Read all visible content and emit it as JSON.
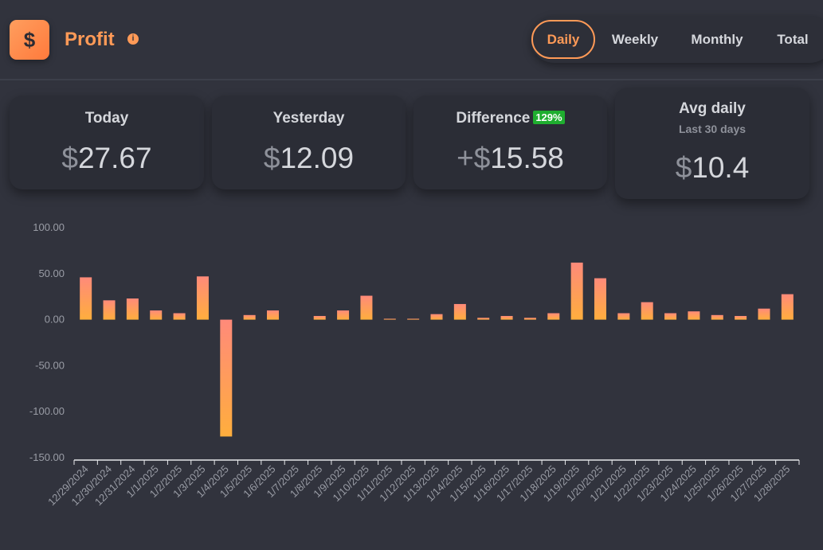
{
  "header": {
    "logo_symbol": "$",
    "title": "Profit",
    "info_icon": "info-icon",
    "accent_color": "#ff9a57"
  },
  "tabs": [
    {
      "label": "Daily",
      "active": true
    },
    {
      "label": "Weekly",
      "active": false
    },
    {
      "label": "Monthly",
      "active": false
    },
    {
      "label": "Total",
      "active": false
    }
  ],
  "cards": {
    "today": {
      "label": "Today",
      "currency": "$",
      "value": "27.67"
    },
    "yesterday": {
      "label": "Yesterday",
      "currency": "$",
      "value": "12.09"
    },
    "difference": {
      "label": "Difference",
      "badge": "129%",
      "sign": "+",
      "currency": "$",
      "value": "15.58"
    },
    "avg": {
      "label": "Avg daily",
      "sub": "Last 30 days",
      "currency": "$",
      "value": "10.4"
    }
  },
  "chart_data": {
    "type": "bar",
    "categories": [
      "12/29/2024",
      "12/30/2024",
      "12/31/2024",
      "1/1/2025",
      "1/2/2025",
      "1/3/2025",
      "1/4/2025",
      "1/5/2025",
      "1/6/2025",
      "1/7/2025",
      "1/8/2025",
      "1/9/2025",
      "1/10/2025",
      "1/11/2025",
      "1/12/2025",
      "1/13/2025",
      "1/14/2025",
      "1/15/2025",
      "1/16/2025",
      "1/17/2025",
      "1/18/2025",
      "1/19/2025",
      "1/20/2025",
      "1/21/2025",
      "1/22/2025",
      "1/23/2025",
      "1/24/2025",
      "1/25/2025",
      "1/26/2025",
      "1/27/2025",
      "1/28/2025"
    ],
    "values": [
      46,
      21,
      23,
      10,
      7,
      47,
      -127,
      5,
      10,
      0,
      4,
      10,
      26,
      1,
      1,
      6,
      17,
      2,
      4,
      2,
      7,
      62,
      45,
      7,
      19,
      7,
      9,
      5,
      4,
      12,
      27.67
    ],
    "yticks": [
      "100.00",
      "50.00",
      "0.00",
      "-50.00",
      "-100.00",
      "-150.00"
    ],
    "ylim": [
      -150,
      100
    ],
    "grid": false,
    "bar_gradient": [
      "#ff8a7a",
      "#ffae3d"
    ]
  }
}
